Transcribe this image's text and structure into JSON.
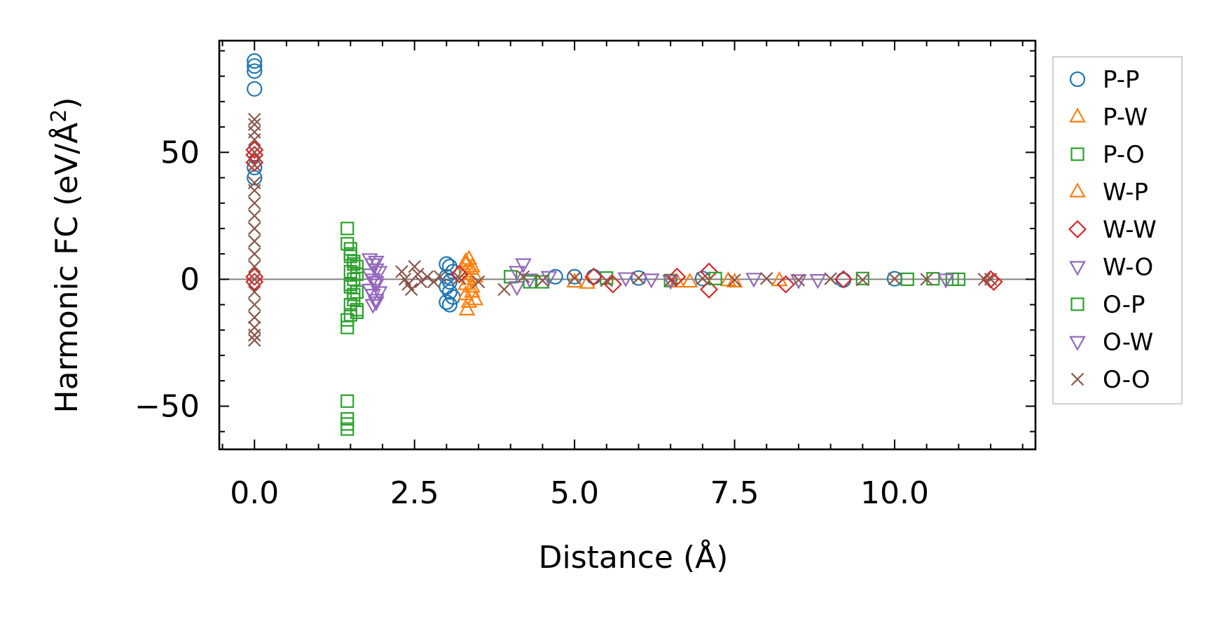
{
  "chart_data": {
    "type": "scatter",
    "title": "",
    "xlabel": "Distance (Å)",
    "ylabel": "Harmonic FC (eV/Å²)",
    "ylabel_main": "Harmonic FC (eV/Å",
    "ylabel_sup": "2",
    "ylabel_close": ")",
    "xlim": [
      -0.55,
      12.2
    ],
    "ylim": [
      -67,
      94
    ],
    "xticks": [
      0.0,
      2.5,
      5.0,
      7.5,
      10.0
    ],
    "xtick_labels": [
      "0.0",
      "2.5",
      "5.0",
      "7.5",
      "10.0"
    ],
    "yticks": [
      -50,
      0,
      50
    ],
    "ytick_labels": [
      "−50",
      "0",
      "50"
    ],
    "zero_line": 0,
    "grid": false,
    "legend_position": "outside-right",
    "series": [
      {
        "name": "P-P",
        "marker": "circle",
        "color": "#1f77b4",
        "points": [
          [
            0.0,
            86
          ],
          [
            0.0,
            84
          ],
          [
            0.0,
            82
          ],
          [
            0.0,
            75
          ],
          [
            0.0,
            44
          ],
          [
            0.0,
            40
          ],
          [
            3.0,
            6
          ],
          [
            3.05,
            5
          ],
          [
            3.1,
            3
          ],
          [
            3.0,
            1
          ],
          [
            3.05,
            -1
          ],
          [
            3.0,
            -3
          ],
          [
            3.05,
            -5
          ],
          [
            3.1,
            -7
          ],
          [
            3.0,
            -9
          ],
          [
            3.05,
            -10
          ],
          [
            4.7,
            1
          ],
          [
            5.0,
            1
          ],
          [
            5.3,
            1
          ],
          [
            6.0,
            0.5
          ],
          [
            7.0,
            0.3
          ],
          [
            9.2,
            -0.3
          ],
          [
            10.0,
            0.2
          ]
        ]
      },
      {
        "name": "P-W",
        "marker": "triangle-up",
        "color": "#ff7f0e",
        "points": [
          [
            3.3,
            7
          ],
          [
            3.35,
            8
          ],
          [
            3.4,
            5
          ],
          [
            3.3,
            3
          ],
          [
            3.35,
            0
          ],
          [
            3.4,
            -3
          ],
          [
            3.3,
            -6
          ],
          [
            3.35,
            -9
          ],
          [
            3.32,
            -12
          ],
          [
            5.0,
            -1
          ],
          [
            5.2,
            -1.5
          ],
          [
            6.8,
            -1
          ],
          [
            7.5,
            -1
          ],
          [
            8.2,
            -0.5
          ]
        ]
      },
      {
        "name": "P-O",
        "marker": "square",
        "color": "#2ca02c",
        "points": [
          [
            1.45,
            20
          ],
          [
            1.45,
            14
          ],
          [
            1.5,
            12
          ],
          [
            1.5,
            9
          ],
          [
            1.55,
            7
          ],
          [
            1.6,
            5
          ],
          [
            1.5,
            3
          ],
          [
            1.55,
            0
          ],
          [
            1.5,
            -3
          ],
          [
            1.6,
            -5
          ],
          [
            1.55,
            -8
          ],
          [
            1.5,
            -10
          ],
          [
            1.6,
            -13
          ],
          [
            1.45,
            -16
          ],
          [
            1.45,
            -19
          ],
          [
            1.45,
            -48
          ],
          [
            1.45,
            -55
          ],
          [
            1.45,
            -57
          ],
          [
            1.45,
            -59
          ],
          [
            4.0,
            1
          ],
          [
            4.5,
            -1
          ],
          [
            5.5,
            0.5
          ],
          [
            6.5,
            -0.5
          ],
          [
            9.5,
            0.3
          ],
          [
            10.6,
            0.2
          ],
          [
            10.9,
            0
          ],
          [
            11.0,
            0
          ]
        ]
      },
      {
        "name": "W-P",
        "marker": "triangle-up",
        "color": "#ff7f0e",
        "points": [
          [
            3.3,
            6
          ],
          [
            3.38,
            4
          ],
          [
            3.45,
            1
          ],
          [
            3.3,
            -2
          ],
          [
            3.4,
            -5
          ],
          [
            3.45,
            -8
          ],
          [
            6.6,
            -1
          ],
          [
            7.4,
            -0.5
          ]
        ]
      },
      {
        "name": "W-W",
        "marker": "diamond",
        "color": "#d62728",
        "points": [
          [
            0.0,
            51
          ],
          [
            0.0,
            49
          ],
          [
            0.0,
            46
          ],
          [
            0.0,
            1
          ],
          [
            0.0,
            -1
          ],
          [
            3.2,
            2
          ],
          [
            5.3,
            1
          ],
          [
            5.6,
            -2
          ],
          [
            6.6,
            1
          ],
          [
            7.1,
            3
          ],
          [
            7.1,
            -4
          ],
          [
            8.3,
            -2
          ],
          [
            9.2,
            0
          ],
          [
            11.5,
            0
          ],
          [
            11.55,
            -1
          ]
        ]
      },
      {
        "name": "W-O",
        "marker": "triangle-down",
        "color": "#9467bd",
        "points": [
          [
            1.8,
            8
          ],
          [
            1.85,
            6
          ],
          [
            1.9,
            4
          ],
          [
            1.8,
            2
          ],
          [
            1.85,
            0
          ],
          [
            1.9,
            -2
          ],
          [
            1.8,
            -4
          ],
          [
            1.85,
            -6
          ],
          [
            1.9,
            -8
          ],
          [
            1.85,
            -10
          ],
          [
            4.2,
            6
          ],
          [
            4.1,
            3
          ],
          [
            4.3,
            0
          ],
          [
            4.1,
            -3
          ],
          [
            5.8,
            0.5
          ],
          [
            6.5,
            -0.5
          ],
          [
            7.8,
            0.3
          ],
          [
            8.5,
            -0.3
          ],
          [
            10.8,
            0
          ]
        ]
      },
      {
        "name": "O-P",
        "marker": "square",
        "color": "#2ca02c",
        "points": [
          [
            1.5,
            10
          ],
          [
            1.55,
            6
          ],
          [
            1.6,
            2
          ],
          [
            1.5,
            -2
          ],
          [
            1.55,
            -6
          ],
          [
            1.6,
            -12
          ],
          [
            1.5,
            -14
          ],
          [
            4.3,
            -1
          ],
          [
            7.2,
            0.3
          ],
          [
            10.2,
            0
          ]
        ]
      },
      {
        "name": "O-W",
        "marker": "triangle-down",
        "color": "#9467bd",
        "points": [
          [
            1.9,
            7
          ],
          [
            1.95,
            3
          ],
          [
            1.9,
            -1
          ],
          [
            1.95,
            -5
          ],
          [
            1.9,
            -9
          ],
          [
            4.6,
            1
          ],
          [
            6.2,
            0
          ],
          [
            8.8,
            -0.2
          ]
        ]
      },
      {
        "name": "O-O",
        "marker": "x",
        "color": "#8c564b",
        "points": [
          [
            0.0,
            63
          ],
          [
            0.0,
            61
          ],
          [
            0.0,
            58
          ],
          [
            0.0,
            55
          ],
          [
            0.0,
            50
          ],
          [
            0.0,
            45
          ],
          [
            0.0,
            38
          ],
          [
            0.0,
            35
          ],
          [
            0.0,
            30
          ],
          [
            0.0,
            25
          ],
          [
            0.0,
            20
          ],
          [
            0.0,
            15
          ],
          [
            0.0,
            10
          ],
          [
            0.0,
            5
          ],
          [
            0.0,
            0
          ],
          [
            0.0,
            -5
          ],
          [
            0.0,
            -10
          ],
          [
            0.0,
            -15
          ],
          [
            0.0,
            -19
          ],
          [
            0.0,
            -22
          ],
          [
            0.0,
            -24
          ],
          [
            2.3,
            3
          ],
          [
            2.35,
            0
          ],
          [
            2.4,
            -2
          ],
          [
            2.45,
            -4
          ],
          [
            2.5,
            5
          ],
          [
            2.55,
            2
          ],
          [
            2.6,
            -1
          ],
          [
            2.7,
            1
          ],
          [
            2.8,
            -1
          ],
          [
            2.9,
            1
          ],
          [
            3.2,
            0.5
          ],
          [
            3.5,
            -1
          ],
          [
            3.9,
            -4
          ],
          [
            4.2,
            1
          ],
          [
            4.5,
            -0.5
          ],
          [
            5.0,
            0.5
          ],
          [
            5.5,
            -0.5
          ],
          [
            6.0,
            0.5
          ],
          [
            6.5,
            -0.5
          ],
          [
            7.0,
            0.3
          ],
          [
            7.5,
            -0.3
          ],
          [
            8.0,
            0.3
          ],
          [
            8.5,
            -0.3
          ],
          [
            9.0,
            0.2
          ],
          [
            9.5,
            -0.2
          ],
          [
            10.0,
            0.2
          ],
          [
            10.5,
            0
          ],
          [
            11.4,
            0
          ],
          [
            11.5,
            0
          ]
        ]
      }
    ]
  },
  "colors": {
    "pp": "#1f77b4",
    "pw": "#ff7f0e",
    "po": "#2ca02c",
    "ww": "#d62728",
    "wo": "#9467bd",
    "oo": "#8c564b",
    "zero_line": "#808080",
    "legend_border": "#bfbfbf"
  }
}
